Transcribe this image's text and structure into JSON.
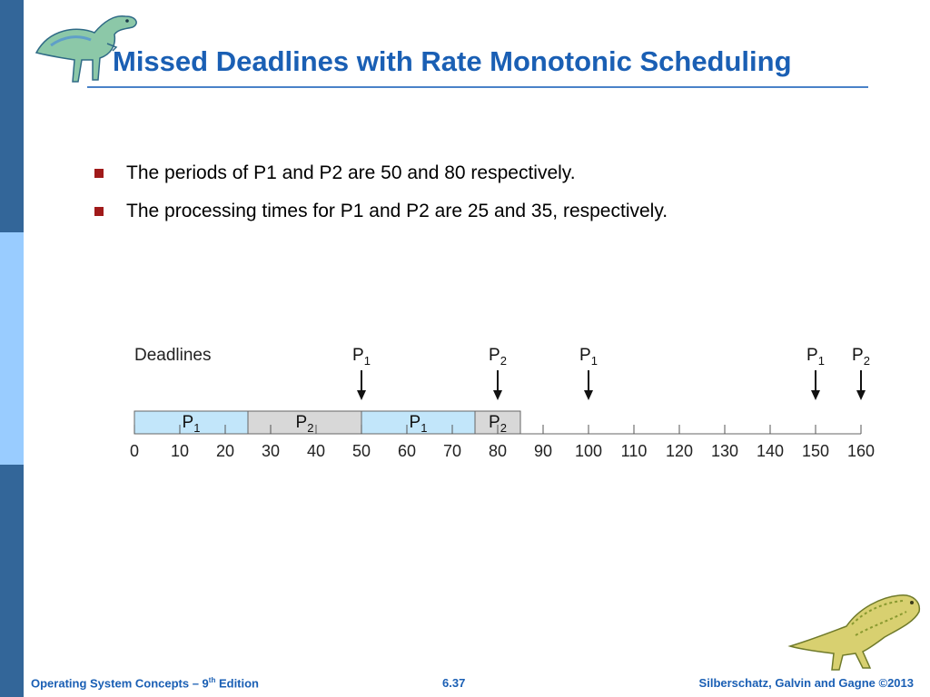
{
  "slide": {
    "title": "Missed Deadlines with Rate Monotonic Scheduling",
    "bullets": [
      "The periods of P1 and P2 are 50 and 80 respectively.",
      "The processing times for P1 and P2 are 25 and 35, respectively."
    ]
  },
  "diagram": {
    "deadlines_label": "Deadlines",
    "deadlines": [
      {
        "process": "P",
        "sub": "1",
        "time": 50
      },
      {
        "process": "P",
        "sub": "2",
        "time": 80
      },
      {
        "process": "P",
        "sub": "1",
        "time": 100
      },
      {
        "process": "P",
        "sub": "1",
        "time": 150
      },
      {
        "process": "P",
        "sub": "2",
        "time": 160
      }
    ],
    "segments": [
      {
        "process": "P",
        "sub": "1",
        "start": 0,
        "end": 25,
        "color": "#c2e6fa"
      },
      {
        "process": "P",
        "sub": "2",
        "start": 25,
        "end": 50,
        "color": "#d8d8d8"
      },
      {
        "process": "P",
        "sub": "1",
        "start": 50,
        "end": 75,
        "color": "#c2e6fa"
      },
      {
        "process": "P",
        "sub": "2",
        "start": 75,
        "end": 85,
        "color": "#d8d8d8"
      }
    ],
    "ticks": [
      "0",
      "10",
      "20",
      "30",
      "40",
      "50",
      "60",
      "70",
      "80",
      "90",
      "100",
      "110",
      "120",
      "130",
      "140",
      "150",
      "160"
    ]
  },
  "footer": {
    "left_prefix": "Operating System Concepts – 9",
    "left_sup": "th",
    "left_suffix": " Edition",
    "page": "6.37",
    "right": "Silberschatz, Galvin and Gagne ©2013"
  },
  "colors": {
    "title": "#1a5fb4",
    "sidebar_dark": "#336699",
    "sidebar_light": "#99ccff",
    "bullet": "#a01a1a"
  },
  "icons": [
    "dinosaur-logo-icon",
    "dinosaur-skeleton-icon"
  ]
}
